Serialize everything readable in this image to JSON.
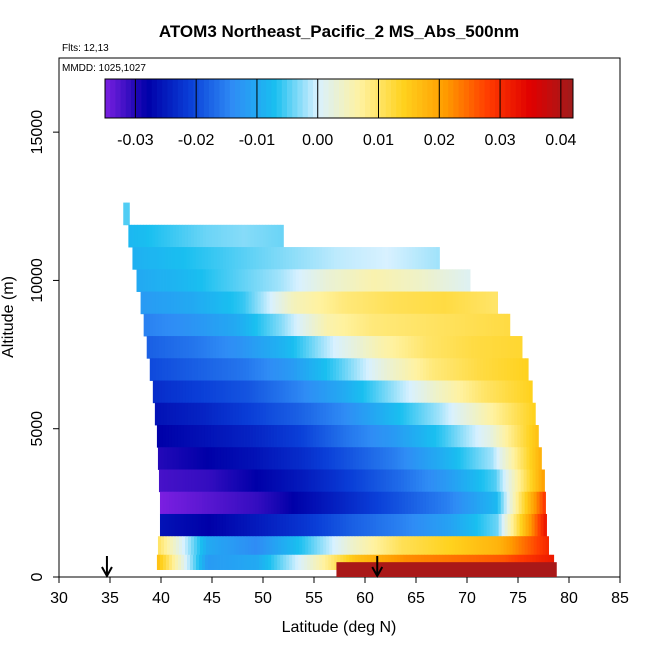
{
  "chart_data": {
    "type": "heatmap",
    "title": "ATOM3 Northeast_Pacific_2 MS_Abs_500nm",
    "flights_label": "Flts: 12,13",
    "mmdd_label": "MMDD: 1025,1027",
    "xlabel": "Latitude (deg N)",
    "ylabel": "Altitude (m)",
    "xlim": [
      30,
      85
    ],
    "ylim": [
      0,
      17500
    ],
    "x_ticks": [
      30,
      35,
      40,
      45,
      50,
      55,
      60,
      65,
      70,
      75,
      80,
      85
    ],
    "y_ticks": [
      0,
      5000,
      10000,
      15000
    ],
    "colorbar": {
      "range": [
        -0.035,
        0.042
      ],
      "ticks": [
        -0.03,
        -0.02,
        -0.01,
        0.0,
        0.01,
        0.02,
        0.03,
        0.04
      ],
      "tick_labels": [
        "-0.03",
        "-0.02",
        "-0.01",
        "0.00",
        "0.01",
        "0.02",
        "0.03",
        "0.04"
      ],
      "colors": [
        "#7a1fe0",
        "#0000a8",
        "#0a3fd8",
        "#2f8cf5",
        "#19bff0",
        "#d8f1ff",
        "#fff2a0",
        "#ffd21e",
        "#ff9c00",
        "#ff3c00",
        "#e00000",
        "#a01c1c"
      ]
    },
    "profile_arrows_lat": [
      34.7,
      61.2
    ],
    "altitude_bins_m": [
      12250,
      11500,
      10750,
      10000,
      9250,
      8500,
      7750,
      7000,
      6250,
      5500,
      4750,
      4000,
      3250,
      2500,
      1750,
      1000,
      500
    ],
    "lat_start_deg": [
      36.3,
      36.8,
      37.2,
      37.6,
      38.0,
      38.3,
      38.6,
      38.9,
      39.2,
      39.4,
      39.6,
      39.7,
      39.8,
      39.9,
      39.9,
      39.7,
      39.6
    ],
    "lat_end_deg": [
      36.9,
      52.0,
      67.3,
      70.3,
      73.0,
      74.2,
      75.4,
      76.0,
      76.4,
      76.7,
      77.0,
      77.3,
      77.6,
      77.7,
      77.8,
      78.0,
      78.5
    ],
    "values": [
      [
        -0.005
      ],
      [
        -0.008,
        -0.006,
        -0.004,
        -0.003,
        -0.004
      ],
      [
        -0.009,
        -0.007,
        -0.005,
        -0.003,
        -0.001,
        0.0,
        -0.002
      ],
      [
        -0.01,
        -0.008,
        -0.005,
        -0.002,
        0.003,
        0.006,
        0.004,
        0.001
      ],
      [
        -0.012,
        -0.01,
        -0.006,
        0.005,
        0.009,
        0.011,
        0.012,
        0.01
      ],
      [
        -0.015,
        -0.013,
        -0.01,
        -0.003,
        0.006,
        0.009,
        0.01,
        0.011,
        0.012
      ],
      [
        -0.018,
        -0.016,
        -0.013,
        -0.008,
        0.0,
        0.006,
        0.01,
        0.012,
        0.013
      ],
      [
        -0.02,
        -0.018,
        -0.016,
        -0.012,
        -0.005,
        0.003,
        0.009,
        0.012,
        0.014
      ],
      [
        -0.023,
        -0.021,
        -0.019,
        -0.015,
        -0.01,
        -0.003,
        0.004,
        0.01,
        0.014
      ],
      [
        -0.026,
        -0.024,
        -0.021,
        -0.018,
        -0.014,
        -0.008,
        -0.002,
        0.006,
        0.014
      ],
      [
        -0.028,
        -0.026,
        -0.024,
        -0.021,
        -0.016,
        -0.012,
        -0.006,
        0.002,
        0.016
      ],
      [
        -0.03,
        -0.028,
        -0.026,
        -0.023,
        -0.019,
        -0.015,
        -0.009,
        -0.002,
        0.018
      ],
      [
        -0.032,
        -0.031,
        -0.028,
        -0.025,
        -0.021,
        -0.017,
        -0.012,
        -0.005,
        0.02
      ],
      [
        -0.035,
        -0.033,
        -0.031,
        -0.027,
        -0.023,
        -0.019,
        -0.015,
        -0.008,
        0.028
      ],
      [
        -0.026,
        -0.028,
        -0.025,
        -0.022,
        -0.018,
        -0.015,
        -0.011,
        -0.004,
        0.032
      ],
      [
        0.01,
        -0.01,
        -0.014,
        -0.006,
        0.004,
        0.011,
        0.014,
        0.018,
        0.03
      ],
      [
        0.016,
        -0.012,
        -0.01,
        0.002,
        0.016,
        0.022,
        0.024,
        0.026,
        0.032
      ]
    ],
    "surface_bar": {
      "lat_range": [
        57.2,
        78.8
      ],
      "altitude_range_m": [
        0,
        250
      ],
      "value": 0.041
    }
  }
}
